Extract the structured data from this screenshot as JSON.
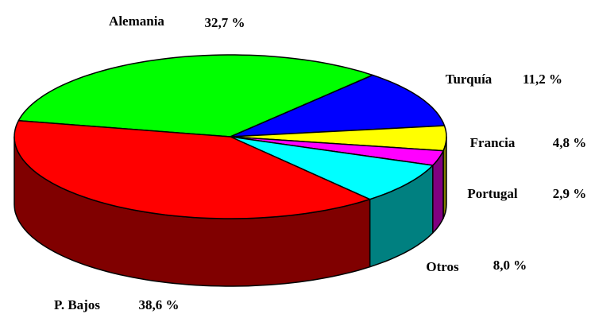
{
  "chart_data": {
    "type": "pie3d",
    "categories": [
      "Alemania",
      "Turquía",
      "Francia",
      "Portugal",
      "Otros",
      "P. Bajos"
    ],
    "values": [
      32.7,
      11.2,
      4.8,
      2.9,
      8.0,
      38.6
    ],
    "value_labels": [
      "32,7 %",
      "11,2 %",
      "4,8 %",
      "2,9 %",
      "8,0 %",
      "38,6 %"
    ],
    "colors": [
      "#00ff00",
      "#0000ff",
      "#ffff00",
      "#ff00ff",
      "#00ffff",
      "#ff0000"
    ],
    "side_colors": [
      "#008000",
      "#000080",
      "#808000",
      "#800080",
      "#008080",
      "#800000"
    ]
  }
}
